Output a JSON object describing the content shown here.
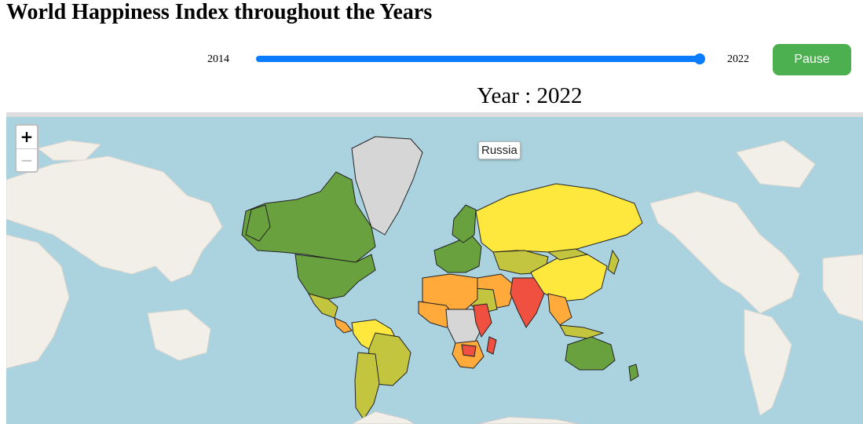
{
  "page": {
    "title": "World Happiness Index throughout the Years"
  },
  "slider": {
    "min_label": "2014",
    "max_label": "2022",
    "min_year": 2014,
    "max_year": 2022,
    "current_year": 2022,
    "accent_color": "#0a7cff"
  },
  "controls": {
    "pause_label": "Pause",
    "pause_color": "#4caf50"
  },
  "map": {
    "year_heading": "Year : 2022",
    "zoom_in_label": "+",
    "zoom_out_label": "−",
    "tooltip": "Russia",
    "ocean_color": "#aad3df",
    "land_color": "#f2efe9",
    "legend_colors": {
      "very_happy": "#6aa13f",
      "happy": "#c4c53f",
      "moderate": "#ffe83d",
      "low": "#ffaa3b",
      "very_low": "#f0503f",
      "no_data": "#d6d6d6"
    }
  }
}
